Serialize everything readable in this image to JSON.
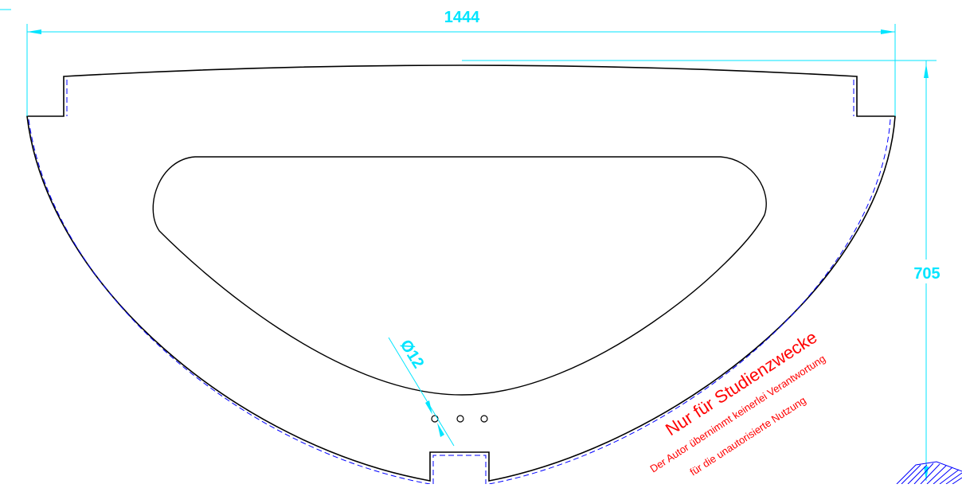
{
  "drawing": {
    "dimensions": {
      "overall_width": "1444",
      "overall_height": "705",
      "hole_diameter": "Ø12"
    },
    "watermark": {
      "line1": "Nur für Studienzwecke",
      "line2": "Der Autor übernimmt keinerlei Verantwortung",
      "line3": "für die unautorisierte Nutzung"
    },
    "colors": {
      "outline": "#000000",
      "dimension": "#00e5ff",
      "hidden_line": "#0000ff",
      "watermark": "#ff0000"
    }
  }
}
